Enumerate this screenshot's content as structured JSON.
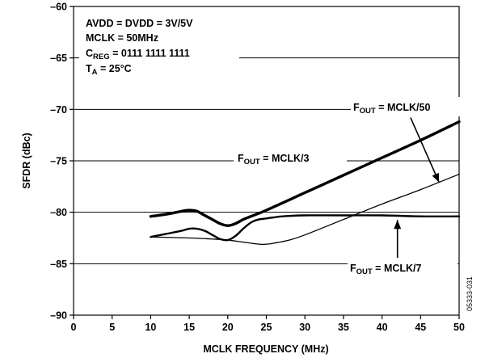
{
  "chart_data": {
    "type": "line",
    "xlabel": "MCLK FREQUENCY (MHz)",
    "ylabel": "SFDR (dBc)",
    "xlim": [
      0,
      50
    ],
    "ylim": [
      -90,
      -60
    ],
    "xticks": [
      0,
      5,
      10,
      15,
      20,
      25,
      30,
      35,
      40,
      45,
      50
    ],
    "yticks": [
      -60,
      -65,
      -70,
      -75,
      -80,
      -85,
      -90
    ],
    "grid": true,
    "conditions": [
      {
        "text": "AVDD = DVDD = 3V/5V"
      },
      {
        "text": "MCLK = 50MHz"
      },
      {
        "main": "C",
        "sub": "REG",
        "rest": " = 0111 1111 1111"
      },
      {
        "main": "T",
        "sub": "A",
        "rest": " = 25°C"
      }
    ],
    "series": [
      {
        "name": "FOUT = MCLK/3",
        "label": {
          "main": "F",
          "sub": "OUT",
          "rest": " = MCLK/3"
        },
        "weight": "heavy",
        "x": [
          10,
          12,
          14,
          15,
          16,
          17,
          18,
          19,
          20,
          21,
          22,
          23,
          25,
          30,
          35,
          40,
          45,
          50
        ],
        "y": [
          -80.4,
          -80.2,
          -79.9,
          -79.8,
          -79.9,
          -80.3,
          -80.7,
          -81.1,
          -81.3,
          -81.1,
          -80.7,
          -80.4,
          -79.8,
          -78.1,
          -76.4,
          -74.7,
          -73.0,
          -71.2
        ]
      },
      {
        "name": "FOUT = MCLK/7",
        "label": {
          "main": "F",
          "sub": "OUT",
          "rest": " = MCLK/7"
        },
        "weight": "medium",
        "x": [
          10,
          12,
          14,
          15,
          16,
          17,
          18,
          19,
          20,
          21,
          22,
          23,
          24,
          25,
          27,
          30,
          35,
          40,
          45,
          50
        ],
        "y": [
          -82.4,
          -82.1,
          -81.8,
          -81.6,
          -81.6,
          -81.8,
          -82.2,
          -82.6,
          -82.7,
          -82.3,
          -81.6,
          -81.0,
          -80.7,
          -80.6,
          -80.4,
          -80.3,
          -80.3,
          -80.3,
          -80.4,
          -80.4
        ]
      },
      {
        "name": "FOUT = MCLK/50",
        "label": {
          "main": "F",
          "sub": "OUT",
          "rest": " = MCLK/50"
        },
        "weight": "light",
        "x": [
          10,
          15,
          18,
          20,
          22,
          24,
          25,
          26,
          28,
          30,
          35,
          40,
          45,
          50
        ],
        "y": [
          -82.4,
          -82.5,
          -82.6,
          -82.7,
          -82.9,
          -83.1,
          -83.1,
          -83.0,
          -82.7,
          -82.2,
          -80.7,
          -79.2,
          -77.8,
          -76.3
        ]
      }
    ],
    "figure_id": "05333-031"
  }
}
